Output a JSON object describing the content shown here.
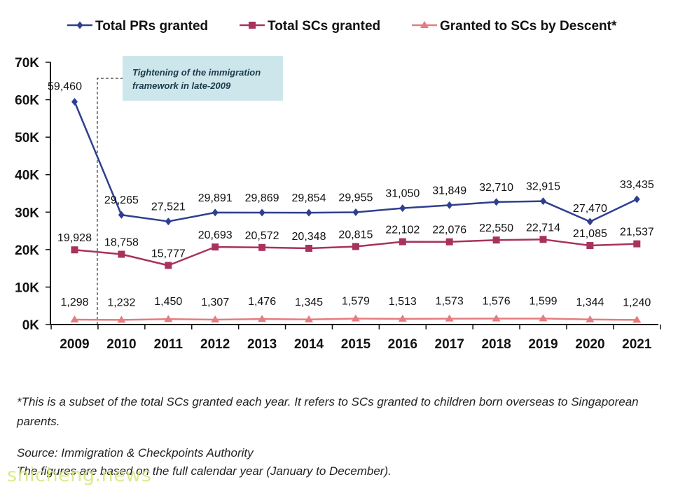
{
  "colors": {
    "prs": "#2f3f8f",
    "scs": "#a8325e",
    "descent": "#e57c7e",
    "annotation_bg": "#cde6ec",
    "axis": "#111111"
  },
  "chart_data": {
    "type": "line",
    "categories": [
      "2009",
      "2010",
      "2011",
      "2012",
      "2013",
      "2014",
      "2015",
      "2016",
      "2017",
      "2018",
      "2019",
      "2020",
      "2021"
    ],
    "series": [
      {
        "name": "Total PRs granted",
        "marker": "diamond",
        "color": "#2f3f8f",
        "values": [
          59460,
          29265,
          27521,
          29891,
          29869,
          29854,
          29955,
          31050,
          31849,
          32710,
          32915,
          27470,
          33435
        ],
        "labels": [
          "59,460",
          "29,265",
          "27,521",
          "29,891",
          "29,869",
          "29,854",
          "29,955",
          "31,050",
          "31,849",
          "32,710",
          "32,915",
          "27,470",
          "33,435"
        ]
      },
      {
        "name": "Total SCs granted",
        "marker": "square",
        "color": "#a8325e",
        "values": [
          19928,
          18758,
          15777,
          20693,
          20572,
          20348,
          20815,
          22102,
          22076,
          22550,
          22714,
          21085,
          21537
        ],
        "labels": [
          "19,928",
          "18,758",
          "15,777",
          "20,693",
          "20,572",
          "20,348",
          "20,815",
          "22,102",
          "22,076",
          "22,550",
          "22,714",
          "21,085",
          "21,537"
        ]
      },
      {
        "name": "Granted to SCs by Descent*",
        "marker": "triangle",
        "color": "#e57c7e",
        "values": [
          1298,
          1232,
          1450,
          1307,
          1476,
          1345,
          1579,
          1513,
          1573,
          1576,
          1599,
          1344,
          1240
        ],
        "labels": [
          "1,298",
          "1,232",
          "1,450",
          "1,307",
          "1,476",
          "1,345",
          "1,579",
          "1,513",
          "1,573",
          "1,576",
          "1,599",
          "1,344",
          "1,240"
        ]
      }
    ],
    "ylim": [
      0,
      70000
    ],
    "yticks": [
      "0K",
      "10K",
      "20K",
      "30K",
      "40K",
      "50K",
      "60K",
      "70K"
    ],
    "xlabel": "",
    "ylabel": "",
    "grid": false,
    "legend_position": "top",
    "annotation": {
      "text_line1": "Tightening of the immigration",
      "text_line2": "framework in late-2009",
      "between": [
        "2009",
        "2010"
      ]
    }
  },
  "footnotes": {
    "descent_note": "*This is a subset of the total SCs granted each year. It refers to SCs granted to children born overseas to Singaporean parents.",
    "source": "Source: Immigration & Checkpoints Authority",
    "period": "The figures are based on the full calendar year (January to December)."
  },
  "watermark": "shicheng.news"
}
